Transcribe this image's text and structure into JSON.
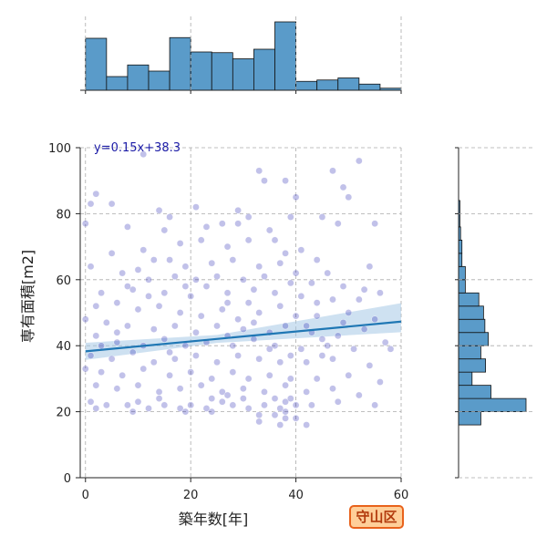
{
  "badge": {
    "label": "守山区",
    "bg": "#ffcf99",
    "border": "#e8621c",
    "text_color": "#b23a0c"
  },
  "chart_data": {
    "type": "scatter",
    "title": "",
    "xlabel": "築年数[年]",
    "ylabel": "専有面積[m2]",
    "xlim": [
      -1,
      60
    ],
    "ylim": [
      0,
      100
    ],
    "x_ticks": [
      0,
      20,
      40,
      60
    ],
    "y_ticks": [
      0,
      20,
      40,
      60,
      80,
      100
    ],
    "grid": true,
    "regression": {
      "equation": "y=0.15x+38.3",
      "slope": 0.15,
      "intercept": 38.3,
      "line_color": "#1f77b4",
      "band_color": "#a6c8e6"
    },
    "point_color": "#2020b0",
    "points": [
      [
        11,
        98
      ],
      [
        33,
        93
      ],
      [
        52,
        96
      ],
      [
        47,
        93
      ],
      [
        38,
        90
      ],
      [
        34,
        90
      ],
      [
        2,
        86
      ],
      [
        5,
        83
      ],
      [
        1,
        83
      ],
      [
        49,
        88
      ],
      [
        40,
        85
      ],
      [
        50,
        85
      ],
      [
        21,
        82
      ],
      [
        29,
        81
      ],
      [
        14,
        81
      ],
      [
        31,
        79
      ],
      [
        16,
        79
      ],
      [
        39,
        79
      ],
      [
        45,
        79
      ],
      [
        26,
        77
      ],
      [
        29,
        77
      ],
      [
        23,
        76
      ],
      [
        48,
        77
      ],
      [
        55,
        77
      ],
      [
        8,
        76
      ],
      [
        15,
        75
      ],
      [
        35,
        75
      ],
      [
        0,
        77
      ],
      [
        11,
        69
      ],
      [
        18,
        71
      ],
      [
        22,
        72
      ],
      [
        27,
        70
      ],
      [
        31,
        72
      ],
      [
        36,
        72
      ],
      [
        38,
        68
      ],
      [
        41,
        69
      ],
      [
        44,
        66
      ],
      [
        5,
        68
      ],
      [
        13,
        66
      ],
      [
        16,
        66
      ],
      [
        19,
        64
      ],
      [
        24,
        65
      ],
      [
        28,
        66
      ],
      [
        33,
        64
      ],
      [
        37,
        65
      ],
      [
        40,
        62
      ],
      [
        46,
        62
      ],
      [
        54,
        64
      ],
      [
        1,
        64
      ],
      [
        7,
        62
      ],
      [
        10,
        63
      ],
      [
        17,
        61
      ],
      [
        21,
        60
      ],
      [
        25,
        61
      ],
      [
        30,
        60
      ],
      [
        34,
        61
      ],
      [
        39,
        59
      ],
      [
        43,
        59
      ],
      [
        49,
        58
      ],
      [
        53,
        57
      ],
      [
        3,
        56
      ],
      [
        9,
        57
      ],
      [
        12,
        55
      ],
      [
        15,
        56
      ],
      [
        20,
        55
      ],
      [
        23,
        58
      ],
      [
        27,
        56
      ],
      [
        32,
        57
      ],
      [
        36,
        56
      ],
      [
        41,
        55
      ],
      [
        47,
        54
      ],
      [
        52,
        54
      ],
      [
        56,
        56
      ],
      [
        2,
        52
      ],
      [
        6,
        53
      ],
      [
        10,
        51
      ],
      [
        14,
        52
      ],
      [
        18,
        50
      ],
      [
        22,
        49
      ],
      [
        26,
        51
      ],
      [
        29,
        48
      ],
      [
        33,
        50
      ],
      [
        37,
        52
      ],
      [
        40,
        49
      ],
      [
        44,
        49
      ],
      [
        50,
        50
      ],
      [
        55,
        48
      ],
      [
        0,
        48
      ],
      [
        4,
        47
      ],
      [
        8,
        46
      ],
      [
        13,
        45
      ],
      [
        17,
        46
      ],
      [
        21,
        44
      ],
      [
        25,
        46
      ],
      [
        30,
        45
      ],
      [
        35,
        44
      ],
      [
        38,
        46
      ],
      [
        43,
        44
      ],
      [
        48,
        43
      ],
      [
        53,
        45
      ],
      [
        58,
        39
      ],
      [
        2,
        43
      ],
      [
        6,
        41
      ],
      [
        11,
        40
      ],
      [
        15,
        42
      ],
      [
        19,
        40
      ],
      [
        23,
        41
      ],
      [
        28,
        40
      ],
      [
        32,
        42
      ],
      [
        36,
        40
      ],
      [
        41,
        39
      ],
      [
        46,
        40
      ],
      [
        51,
        39
      ],
      [
        1,
        37
      ],
      [
        5,
        36
      ],
      [
        9,
        38
      ],
      [
        13,
        35
      ],
      [
        17,
        36
      ],
      [
        21,
        37
      ],
      [
        25,
        35
      ],
      [
        29,
        37
      ],
      [
        33,
        36
      ],
      [
        37,
        35
      ],
      [
        42,
        35
      ],
      [
        47,
        36
      ],
      [
        54,
        34
      ],
      [
        0,
        33
      ],
      [
        3,
        32
      ],
      [
        7,
        31
      ],
      [
        11,
        33
      ],
      [
        16,
        31
      ],
      [
        20,
        32
      ],
      [
        24,
        30
      ],
      [
        28,
        32
      ],
      [
        31,
        30
      ],
      [
        35,
        31
      ],
      [
        39,
        30
      ],
      [
        44,
        30
      ],
      [
        50,
        31
      ],
      [
        56,
        29
      ],
      [
        2,
        28
      ],
      [
        6,
        27
      ],
      [
        10,
        28
      ],
      [
        14,
        26
      ],
      [
        18,
        27
      ],
      [
        22,
        28
      ],
      [
        26,
        26
      ],
      [
        30,
        27
      ],
      [
        34,
        26
      ],
      [
        38,
        28
      ],
      [
        42,
        26
      ],
      [
        47,
        27
      ],
      [
        52,
        25
      ],
      [
        1,
        23
      ],
      [
        4,
        22
      ],
      [
        8,
        22
      ],
      [
        10,
        23
      ],
      [
        12,
        21
      ],
      [
        15,
        22
      ],
      [
        18,
        21
      ],
      [
        20,
        22
      ],
      [
        23,
        21
      ],
      [
        26,
        23
      ],
      [
        28,
        22
      ],
      [
        31,
        21
      ],
      [
        34,
        22
      ],
      [
        37,
        21
      ],
      [
        38,
        23
      ],
      [
        40,
        22
      ],
      [
        43,
        22
      ],
      [
        48,
        23
      ],
      [
        55,
        22
      ],
      [
        2,
        21
      ],
      [
        9,
        20
      ],
      [
        19,
        20
      ],
      [
        24,
        20
      ],
      [
        33,
        19
      ],
      [
        36,
        19
      ],
      [
        38,
        18
      ],
      [
        40,
        18
      ],
      [
        33,
        17
      ],
      [
        37,
        16
      ],
      [
        42,
        16
      ],
      [
        38,
        20
      ],
      [
        39,
        24
      ],
      [
        36,
        24
      ],
      [
        24,
        24
      ],
      [
        27,
        25
      ],
      [
        30,
        24
      ],
      [
        14,
        24
      ],
      [
        3,
        40
      ],
      [
        45,
        42
      ],
      [
        49,
        47
      ],
      [
        57,
        41
      ],
      [
        44,
        53
      ],
      [
        42,
        46
      ],
      [
        31,
        53
      ],
      [
        27,
        53
      ],
      [
        19,
        58
      ],
      [
        12,
        60
      ],
      [
        8,
        58
      ],
      [
        6,
        44
      ],
      [
        16,
        38
      ],
      [
        27,
        43
      ],
      [
        32,
        47
      ],
      [
        35,
        39
      ],
      [
        39,
        37
      ],
      [
        45,
        37
      ]
    ]
  },
  "top_hist": {
    "bins": [
      0,
      4,
      8,
      12,
      16,
      20,
      24,
      28,
      32,
      36,
      40,
      44,
      48,
      52,
      56,
      60
    ],
    "counts": [
      0.76,
      0.2,
      0.37,
      0.28,
      0.77,
      0.56,
      0.55,
      0.46,
      0.6,
      1.0,
      0.13,
      0.15,
      0.18,
      0.09,
      0.03
    ],
    "color": "#5a9bc9"
  },
  "right_hist": {
    "bins": [
      16,
      20,
      24,
      28,
      32,
      36,
      40,
      44,
      48,
      52,
      56,
      60,
      64,
      68,
      72,
      76,
      80,
      84,
      88,
      92,
      96,
      100
    ],
    "counts": [
      0.33,
      1.0,
      0.48,
      0.2,
      0.4,
      0.33,
      0.44,
      0.39,
      0.37,
      0.3,
      0.1,
      0.1,
      0.05,
      0.05,
      0.03,
      0.02,
      0.02,
      0,
      0,
      0,
      0
    ],
    "color": "#5a9bc9"
  }
}
